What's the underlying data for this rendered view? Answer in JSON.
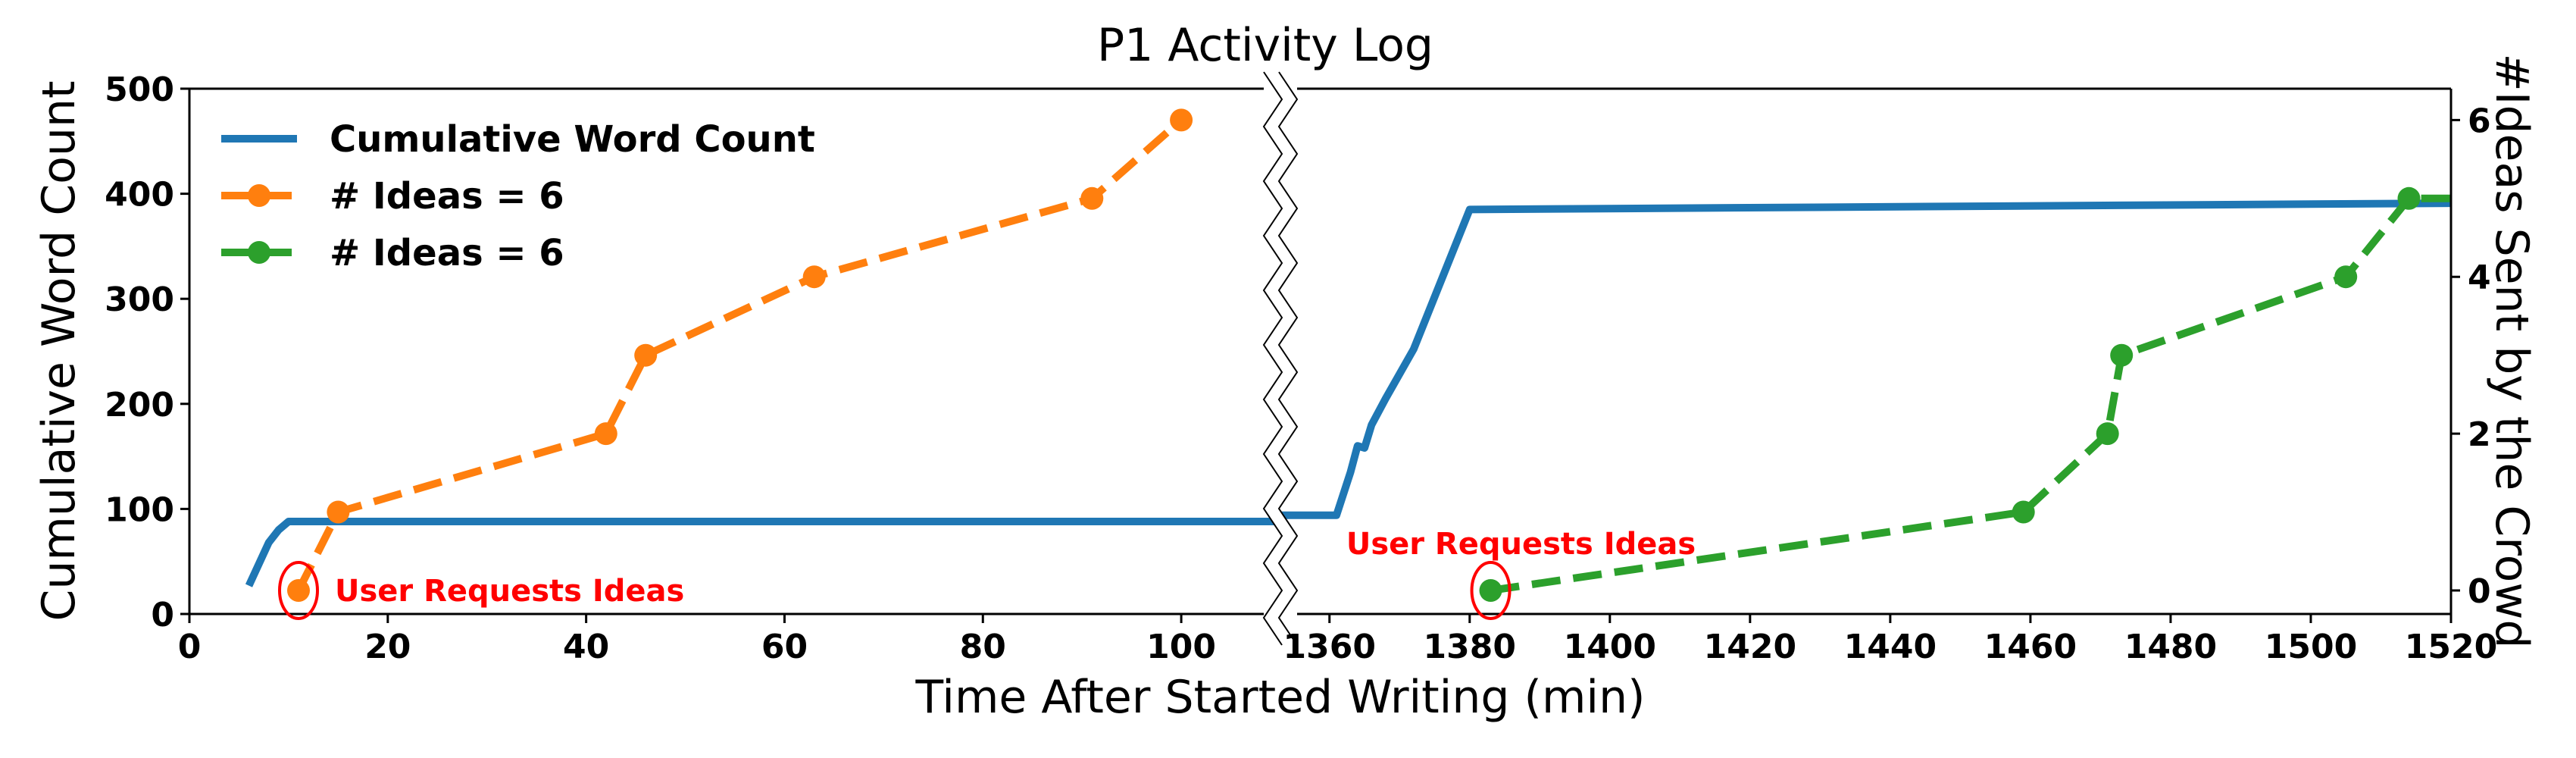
{
  "chart_data": {
    "type": "line",
    "title": "P1 Activity Log",
    "xlabel": "Time After Started Writing (min)",
    "ylabel_left": "Cumulative Word Count",
    "ylabel_right": "#Ideas Sent by the Crowd",
    "broken_x_axis": true,
    "left_panel": {
      "xlim": [
        0,
        110
      ],
      "xticks": [
        "0",
        "20",
        "40",
        "60",
        "80",
        "100"
      ]
    },
    "right_panel": {
      "xlim": [
        1353,
        1520
      ],
      "xticks": [
        "1360",
        "1380",
        "1400",
        "1420",
        "1440",
        "1460",
        "1480",
        "1500",
        "1520"
      ]
    },
    "ylim_left": [
      0,
      500
    ],
    "yticks_left": [
      "0",
      "100",
      "200",
      "300",
      "400",
      "500"
    ],
    "ylim_right": [
      -0.3,
      6.4
    ],
    "yticks_right": [
      "0",
      "2",
      "4",
      "6"
    ],
    "legend_position": "top-left",
    "grid": false,
    "series": [
      {
        "name": "Cumulative Word Count",
        "axis": "left",
        "color": "#1f77b4",
        "style": "solid",
        "left_points": [
          [
            6,
            27
          ],
          [
            8,
            68
          ],
          [
            9,
            80
          ],
          [
            10,
            88
          ],
          [
            110,
            88
          ]
        ],
        "right_points": [
          [
            1353,
            94
          ],
          [
            1361,
            94
          ],
          [
            1363,
            135
          ],
          [
            1364,
            160
          ],
          [
            1365,
            158
          ],
          [
            1366,
            180
          ],
          [
            1368,
            205
          ],
          [
            1372,
            252
          ],
          [
            1380,
            385
          ],
          [
            1520,
            391
          ]
        ]
      },
      {
        "name": "# Ideas = 6",
        "axis": "right",
        "color": "#ff7f0e",
        "style": "dashed-marker",
        "points": [
          [
            11,
            0
          ],
          [
            15,
            1
          ],
          [
            42,
            2
          ],
          [
            46,
            3
          ],
          [
            63,
            4
          ],
          [
            91,
            5
          ],
          [
            100,
            6
          ]
        ]
      },
      {
        "name": "# Ideas = 6",
        "axis": "right",
        "color": "#2ca02c",
        "style": "dashed-marker",
        "points": [
          [
            1383,
            0
          ],
          [
            1459,
            1
          ],
          [
            1471,
            2
          ],
          [
            1473,
            3
          ],
          [
            1505,
            4
          ],
          [
            1514,
            5
          ],
          [
            1520,
            5
          ]
        ]
      }
    ],
    "annotations": [
      {
        "text": "User Requests Ideas",
        "color": "#ff0000",
        "panel": "left",
        "at": [
          11,
          0
        ]
      },
      {
        "text": "User Requests Ideas",
        "color": "#ff0000",
        "panel": "right",
        "at": [
          1383,
          0
        ]
      }
    ]
  }
}
